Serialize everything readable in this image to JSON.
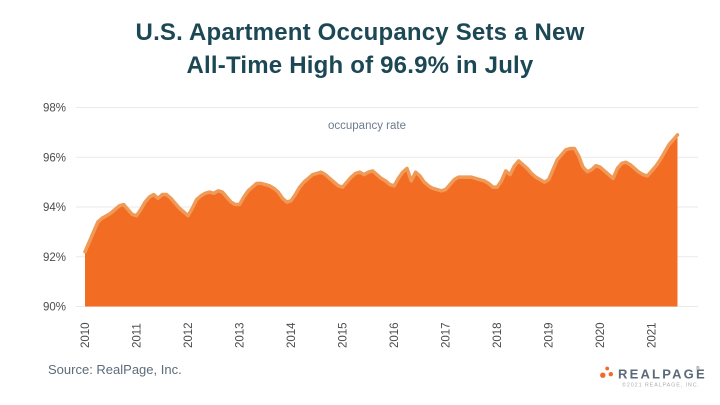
{
  "header": {
    "title_line1": "U.S. Apartment Occupancy Sets a New",
    "title_line2": "All-Time High of 96.9% in July",
    "title_color": "#1c4755"
  },
  "chart_data": {
    "type": "area",
    "title": "U.S. Apartment Occupancy Sets a New All-Time High of 96.9% in July",
    "series_label": "occupancy rate",
    "x_start": "2010-01",
    "x_end": "2021-07",
    "x_frequency": "monthly",
    "x_tick_labels": [
      "2010",
      "2011",
      "2012",
      "2013",
      "2014",
      "2015",
      "2016",
      "2017",
      "2018",
      "2019",
      "2020",
      "2021"
    ],
    "y_tick_labels": [
      "90%",
      "92%",
      "94%",
      "96%",
      "98%"
    ],
    "ylim": [
      90,
      98
    ],
    "grid": true,
    "values_pct": [
      92.2,
      92.6,
      93.0,
      93.4,
      93.55,
      93.65,
      93.75,
      93.9,
      94.05,
      94.1,
      93.9,
      93.7,
      93.65,
      93.9,
      94.2,
      94.4,
      94.5,
      94.35,
      94.5,
      94.5,
      94.35,
      94.15,
      93.95,
      93.8,
      93.65,
      93.95,
      94.3,
      94.45,
      94.55,
      94.6,
      94.55,
      94.65,
      94.6,
      94.4,
      94.2,
      94.1,
      94.1,
      94.4,
      94.65,
      94.8,
      94.95,
      94.95,
      94.9,
      94.85,
      94.75,
      94.6,
      94.35,
      94.2,
      94.25,
      94.5,
      94.8,
      95.0,
      95.15,
      95.3,
      95.35,
      95.4,
      95.3,
      95.15,
      95.0,
      94.85,
      94.8,
      95.0,
      95.2,
      95.35,
      95.4,
      95.3,
      95.4,
      95.45,
      95.3,
      95.15,
      95.05,
      94.9,
      94.85,
      95.15,
      95.4,
      95.55,
      95.05,
      95.4,
      95.25,
      95.0,
      94.85,
      94.75,
      94.7,
      94.65,
      94.7,
      94.9,
      95.1,
      95.2,
      95.2,
      95.2,
      95.2,
      95.15,
      95.1,
      95.05,
      94.95,
      94.8,
      94.8,
      95.05,
      95.45,
      95.3,
      95.65,
      95.85,
      95.7,
      95.55,
      95.35,
      95.2,
      95.1,
      95.0,
      95.1,
      95.5,
      95.9,
      96.1,
      96.3,
      96.35,
      96.35,
      96.05,
      95.6,
      95.42,
      95.5,
      95.66,
      95.6,
      95.45,
      95.3,
      95.15,
      95.55,
      95.75,
      95.8,
      95.7,
      95.55,
      95.4,
      95.3,
      95.25,
      95.45,
      95.65,
      95.9,
      96.2,
      96.5,
      96.7,
      96.9
    ],
    "final_value_pct": 96.9,
    "fill_color": "#f36c23",
    "line_color": "#f09a57",
    "grid_color": "#eaeaea",
    "axis_label_color": "#4c4c4c",
    "series_label_color": "#6d7c8e"
  },
  "footer": {
    "source_text": "Source: RealPage, Inc.",
    "logo_text": "REALPAGE",
    "logo_reg_mark": "®",
    "logo_copyright": "©2021 REALPAGE, INC.",
    "logo_dot_color": "#f26b25",
    "logo_text_color": "#5a6a79",
    "logo_copyright_color": "#a6adb4"
  }
}
